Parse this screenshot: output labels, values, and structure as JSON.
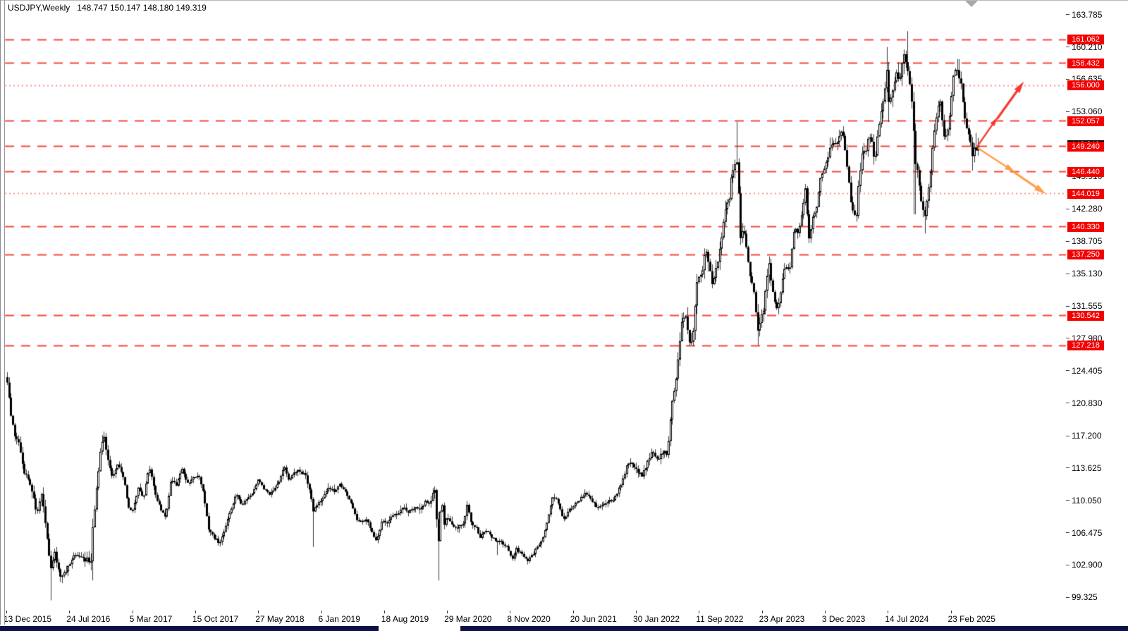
{
  "window": {
    "title_symbol": "USDJPY,Weekly",
    "title_ohlc": "148.747 150.147 148.180 149.319"
  },
  "price_axis": {
    "ticks": [
      "163.785",
      "160.210",
      "156.635",
      "153.060",
      "145.910",
      "142.280",
      "138.705",
      "135.130",
      "131.555",
      "127.980",
      "124.405",
      "120.830",
      "117.200",
      "113.625",
      "110.050",
      "106.475",
      "102.900",
      "99.325"
    ]
  },
  "levels": [
    {
      "label": "161.062",
      "price": 161.062,
      "style": "dashed"
    },
    {
      "label": "158.432",
      "price": 158.432,
      "style": "dashed"
    },
    {
      "label": "156.000",
      "price": 156.0,
      "style": "dotted"
    },
    {
      "label": "152.057",
      "price": 152.057,
      "style": "dashed"
    },
    {
      "label": "149.240",
      "price": 149.24,
      "style": "dashed"
    },
    {
      "label": "146.440",
      "price": 146.44,
      "style": "dashed"
    },
    {
      "label": "144.019",
      "price": 144.019,
      "style": "dotted"
    },
    {
      "label": "140.330",
      "price": 140.33,
      "style": "dashed"
    },
    {
      "label": "137.250",
      "price": 137.25,
      "style": "dashed"
    },
    {
      "label": "130.542",
      "price": 130.542,
      "style": "dashed"
    },
    {
      "label": "127.218",
      "price": 127.218,
      "style": "dashed"
    }
  ],
  "current_price": {
    "label": "149.319",
    "price": 149.319
  },
  "time_axis": {
    "labels": [
      "13 Dec 2015",
      "24 Jul 2016",
      "5 Mar 2017",
      "15 Oct 2017",
      "27 May 2018",
      "6 Jan 2019",
      "18 Aug 2019",
      "29 Mar 2020",
      "8 Nov 2020",
      "20 Jun 2021",
      "30 Jan 2022",
      "11 Sep 2022",
      "23 Apr 2023",
      "3 Dec 2023",
      "14 Jul 2024",
      "23 Feb 2025"
    ]
  },
  "colors": {
    "level_dashed": "#f8463c",
    "level_dotted": "#f9958d",
    "badge_bg": "#f50000",
    "current_badge_bg": "#000000",
    "bull_arrow": "#f43b31",
    "bear_arrow": "#ff9f4a",
    "candle_border": "#000000",
    "candle_bull_fill": "#ffffff",
    "candle_bear_fill": "#000000",
    "bottom_bar": "#0d1147"
  },
  "arrows": {
    "bullish_projection": {
      "color": "#f43b31",
      "segments": [
        [
          1386,
          208,
          1411,
          172
        ],
        [
          1414,
          169,
          1447,
          123
        ]
      ]
    },
    "bearish_projection": {
      "color": "#ff9f4a",
      "segments": [
        [
          1387,
          210,
          1433,
          240
        ],
        [
          1438,
          244,
          1476,
          270
        ]
      ]
    }
  },
  "chart_data": {
    "type": "candlestick",
    "symbol": "USDJPY",
    "timeframe": "Weekly",
    "title": "USDJPY,Weekly 148.747 150.147 148.180 149.319",
    "last_candle": {
      "open": 148.747,
      "high": 150.147,
      "low": 148.18,
      "close": 149.319
    },
    "ylim": [
      97.87,
      165.4
    ],
    "x_range_labels": [
      "13 Dec 2015",
      "23 Feb 2025"
    ],
    "n_weeks": 535,
    "grid": false,
    "legend": false,
    "close_anchors": [
      [
        0,
        123.3
      ],
      [
        2,
        119.5
      ],
      [
        4,
        117.3
      ],
      [
        6,
        116.9
      ],
      [
        9,
        113.4
      ],
      [
        13,
        111.8
      ],
      [
        16,
        108.5
      ],
      [
        19,
        110.6
      ],
      [
        22,
        105.5
      ],
      [
        24,
        102.2
      ],
      [
        26,
        104.5
      ],
      [
        29,
        101.5
      ],
      [
        33,
        102.5
      ],
      [
        37,
        104.0
      ],
      [
        41,
        103.7
      ],
      [
        46,
        103.3
      ],
      [
        47,
        107.0
      ],
      [
        49,
        111.0
      ],
      [
        51,
        115.3
      ],
      [
        53,
        117.6
      ],
      [
        55,
        114.8
      ],
      [
        58,
        112.5
      ],
      [
        61,
        114.1
      ],
      [
        64,
        112.5
      ],
      [
        67,
        109.0
      ],
      [
        69,
        108.9
      ],
      [
        72,
        111.5
      ],
      [
        75,
        110.3
      ],
      [
        78,
        113.9
      ],
      [
        81,
        111.0
      ],
      [
        84,
        109.3
      ],
      [
        87,
        108.0
      ],
      [
        90,
        112.3
      ],
      [
        93,
        111.8
      ],
      [
        96,
        113.8
      ],
      [
        99,
        111.8
      ],
      [
        102,
        112.4
      ],
      [
        105,
        113.0
      ],
      [
        108,
        110.8
      ],
      [
        111,
        106.6
      ],
      [
        114,
        105.9
      ],
      [
        117,
        105.3
      ],
      [
        120,
        107.3
      ],
      [
        123,
        109.1
      ],
      [
        126,
        110.8
      ],
      [
        129,
        109.6
      ],
      [
        132,
        110.2
      ],
      [
        135,
        110.9
      ],
      [
        138,
        112.3
      ],
      [
        141,
        111.3
      ],
      [
        144,
        110.7
      ],
      [
        147,
        111.3
      ],
      [
        150,
        112.2
      ],
      [
        152,
        113.9
      ],
      [
        155,
        112.1
      ],
      [
        158,
        113.3
      ],
      [
        161,
        113.3
      ],
      [
        164,
        112.8
      ],
      [
        167,
        110.4
      ],
      [
        168,
        108.6
      ],
      [
        171,
        109.8
      ],
      [
        174,
        110.6
      ],
      [
        177,
        111.6
      ],
      [
        180,
        111.1
      ],
      [
        183,
        111.8
      ],
      [
        186,
        111.2
      ],
      [
        189,
        109.8
      ],
      [
        192,
        107.9
      ],
      [
        195,
        107.8
      ],
      [
        198,
        107.9
      ],
      [
        201,
        106.2
      ],
      [
        203,
        105.4
      ],
      [
        206,
        107.9
      ],
      [
        209,
        107.6
      ],
      [
        212,
        108.3
      ],
      [
        215,
        108.7
      ],
      [
        218,
        109.2
      ],
      [
        221,
        108.7
      ],
      [
        224,
        109.4
      ],
      [
        227,
        108.8
      ],
      [
        230,
        110.1
      ],
      [
        233,
        109.8
      ],
      [
        235,
        111.6
      ],
      [
        236,
        108.1
      ],
      [
        237,
        105.3
      ],
      [
        238,
        107.7
      ],
      [
        239,
        110.8
      ],
      [
        240,
        107.2
      ],
      [
        242,
        108.3
      ],
      [
        245,
        107.3
      ],
      [
        248,
        107.1
      ],
      [
        251,
        107.7
      ],
      [
        253,
        109.5
      ],
      [
        255,
        107.5
      ],
      [
        258,
        107.0
      ],
      [
        260,
        105.9
      ],
      [
        263,
        106.8
      ],
      [
        266,
        106.1
      ],
      [
        269,
        105.5
      ],
      [
        272,
        105.4
      ],
      [
        275,
        104.9
      ],
      [
        278,
        103.6
      ],
      [
        280,
        104.7
      ],
      [
        283,
        104.1
      ],
      [
        286,
        103.3
      ],
      [
        289,
        104.1
      ],
      [
        292,
        105.0
      ],
      [
        295,
        106.2
      ],
      [
        298,
        108.6
      ],
      [
        300,
        110.6
      ],
      [
        303,
        109.8
      ],
      [
        306,
        107.9
      ],
      [
        309,
        109.0
      ],
      [
        312,
        109.6
      ],
      [
        315,
        110.2
      ],
      [
        318,
        110.9
      ],
      [
        321,
        110.2
      ],
      [
        324,
        109.4
      ],
      [
        327,
        109.5
      ],
      [
        330,
        110.0
      ],
      [
        333,
        109.9
      ],
      [
        336,
        111.1
      ],
      [
        339,
        112.6
      ],
      [
        341,
        114.3
      ],
      [
        344,
        114.0
      ],
      [
        347,
        113.2
      ],
      [
        349,
        112.9
      ],
      [
        351,
        113.6
      ],
      [
        353,
        114.7
      ],
      [
        355,
        115.7
      ],
      [
        357,
        114.3
      ],
      [
        359,
        115.1
      ],
      [
        361,
        115.4
      ],
      [
        363,
        115.0
      ],
      [
        364,
        117.4
      ],
      [
        366,
        121.8
      ],
      [
        367,
        122.0
      ],
      [
        369,
        125.8
      ],
      [
        371,
        129.6
      ],
      [
        373,
        130.3
      ],
      [
        375,
        127.5
      ],
      [
        377,
        127.8
      ],
      [
        379,
        134.4
      ],
      [
        381,
        135.1
      ],
      [
        383,
        136.2
      ],
      [
        384,
        138.2
      ],
      [
        386,
        136.0
      ],
      [
        388,
        133.4
      ],
      [
        389,
        135.0
      ],
      [
        391,
        137.0
      ],
      [
        393,
        138.9
      ],
      [
        395,
        142.7
      ],
      [
        397,
        143.5
      ],
      [
        399,
        146.8
      ],
      [
        401,
        147.7
      ],
      [
        402,
        146.7
      ],
      [
        403,
        138.8
      ],
      [
        405,
        140.1
      ],
      [
        407,
        137.0
      ],
      [
        409,
        134.4
      ],
      [
        411,
        132.5
      ],
      [
        413,
        128.5
      ],
      [
        414,
        129.7
      ],
      [
        416,
        131.3
      ],
      [
        418,
        135.0
      ],
      [
        419,
        136.3
      ],
      [
        421,
        133.0
      ],
      [
        423,
        130.9
      ],
      [
        425,
        132.9
      ],
      [
        427,
        135.2
      ],
      [
        428,
        136.2
      ],
      [
        430,
        135.1
      ],
      [
        432,
        138.5
      ],
      [
        433,
        140.5
      ],
      [
        435,
        139.5
      ],
      [
        437,
        142.0
      ],
      [
        439,
        144.5
      ],
      [
        440,
        141.5
      ],
      [
        441,
        138.9
      ],
      [
        443,
        141.5
      ],
      [
        445,
        142.5
      ],
      [
        447,
        145.5
      ],
      [
        449,
        146.3
      ],
      [
        451,
        147.9
      ],
      [
        453,
        149.5
      ],
      [
        455,
        149.7
      ],
      [
        457,
        149.5
      ],
      [
        459,
        151.4
      ],
      [
        460,
        149.7
      ],
      [
        462,
        147.0
      ],
      [
        464,
        143.0
      ],
      [
        465,
        142.2
      ],
      [
        467,
        141.1
      ],
      [
        468,
        144.7
      ],
      [
        470,
        148.2
      ],
      [
        472,
        148.5
      ],
      [
        474,
        150.3
      ],
      [
        476,
        149.0
      ],
      [
        477,
        147.2
      ],
      [
        479,
        151.4
      ],
      [
        481,
        153.3
      ],
      [
        483,
        155.8
      ],
      [
        484,
        158.2
      ],
      [
        485,
        153.2
      ],
      [
        487,
        155.8
      ],
      [
        489,
        157.1
      ],
      [
        491,
        156.8
      ],
      [
        493,
        159.8
      ],
      [
        495,
        157.9
      ],
      [
        497,
        155.0
      ],
      [
        498,
        153.7
      ],
      [
        499,
        146.7
      ],
      [
        500,
        147.5
      ],
      [
        501,
        146.0
      ],
      [
        502,
        144.5
      ],
      [
        503,
        142.5
      ],
      [
        505,
        141.0
      ],
      [
        506,
        143.9
      ],
      [
        508,
        146.5
      ],
      [
        509,
        149.2
      ],
      [
        511,
        152.5
      ],
      [
        513,
        154.6
      ],
      [
        515,
        150.0
      ],
      [
        517,
        150.5
      ],
      [
        519,
        153.8
      ],
      [
        520,
        156.4
      ],
      [
        521,
        157.8
      ],
      [
        523,
        157.2
      ],
      [
        525,
        155.5
      ],
      [
        527,
        151.8
      ],
      [
        529,
        150.3
      ],
      [
        531,
        148.2
      ],
      [
        533,
        149.8
      ],
      [
        535,
        149.319
      ]
    ],
    "spike_anchors": [
      [
        24,
        "low",
        99.0
      ],
      [
        47,
        "low",
        101.2
      ],
      [
        168,
        "low",
        104.9
      ],
      [
        237,
        "low",
        101.2
      ],
      [
        270,
        "low",
        104.0
      ],
      [
        401,
        "high",
        151.94
      ],
      [
        403,
        "low",
        138.5
      ],
      [
        413,
        "low",
        127.22
      ],
      [
        453,
        "high",
        150.2
      ],
      [
        484,
        "high",
        160.2
      ],
      [
        485,
        "low",
        151.9
      ],
      [
        495,
        "high",
        161.95
      ],
      [
        499,
        "low",
        141.7
      ],
      [
        505,
        "low",
        139.58
      ],
      [
        523,
        "high",
        158.87
      ],
      [
        531,
        "low",
        146.54
      ]
    ],
    "weekly_range_anchors": [
      [
        0,
        1.5
      ],
      [
        24,
        2.2
      ],
      [
        40,
        1.3
      ],
      [
        47,
        2.5
      ],
      [
        53,
        1.8
      ],
      [
        60,
        1.2
      ],
      [
        100,
        1.1
      ],
      [
        140,
        1.0
      ],
      [
        168,
        1.4
      ],
      [
        200,
        1.0
      ],
      [
        235,
        1.6
      ],
      [
        237,
        3.5
      ],
      [
        240,
        1.8
      ],
      [
        260,
        0.9
      ],
      [
        300,
        1.0
      ],
      [
        340,
        1.1
      ],
      [
        364,
        2.0
      ],
      [
        370,
        2.6
      ],
      [
        400,
        2.8
      ],
      [
        410,
        2.4
      ],
      [
        420,
        2.0
      ],
      [
        450,
        1.6
      ],
      [
        460,
        2.0
      ],
      [
        484,
        2.6
      ],
      [
        495,
        3.0
      ],
      [
        500,
        2.6
      ],
      [
        510,
        2.0
      ],
      [
        520,
        1.9
      ],
      [
        535,
        1.9
      ]
    ]
  }
}
